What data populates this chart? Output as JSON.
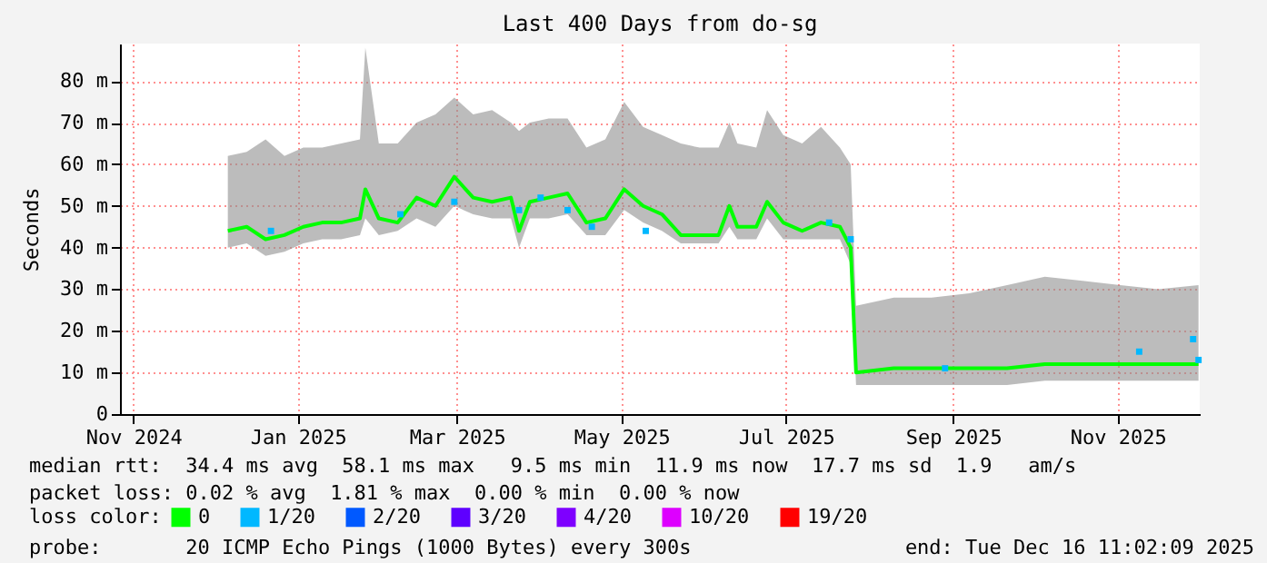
{
  "chart_data": {
    "type": "line",
    "title": "Last 400 Days from do-sg",
    "ylabel": "Seconds",
    "xlim": [
      "2024-11-11",
      "2025-12-16T11:02"
    ],
    "xticks": [
      {
        "value": "2024-11-16",
        "label": "Nov 2024"
      },
      {
        "value": "2025-01-16",
        "label": "Jan 2025"
      },
      {
        "value": "2025-03-16",
        "label": "Mar 2025"
      },
      {
        "value": "2025-05-16",
        "label": "May 2025"
      },
      {
        "value": "2025-07-16",
        "label": "Jul 2025"
      },
      {
        "value": "2025-09-16",
        "label": "Sep 2025"
      },
      {
        "value": "2025-11-16",
        "label": "Nov 2025"
      }
    ],
    "ylim": [
      0,
      89
    ],
    "yticks": [
      0,
      {
        "value": 10,
        "label": "10 m"
      },
      {
        "value": 20,
        "label": "20 m"
      },
      {
        "value": 30,
        "label": "30 m"
      },
      {
        "value": 40,
        "label": "40 m"
      },
      {
        "value": 50,
        "label": "50 m"
      },
      {
        "value": 60,
        "label": "60 m"
      },
      {
        "value": 70,
        "label": "70 m"
      },
      {
        "value": 80,
        "label": "80 m"
      }
    ],
    "grid": true,
    "legend": "bottom",
    "legend_title": "loss color:",
    "series": [
      {
        "name": "0",
        "color": "#00ff00",
        "x": [
          "2024-12-21",
          "2024-12-28",
          "2025-01-04",
          "2025-01-11",
          "2025-01-18",
          "2025-01-25",
          "2025-02-01",
          "2025-02-08",
          "2025-02-10",
          "2025-02-15",
          "2025-02-22",
          "2025-03-01",
          "2025-03-08",
          "2025-03-15",
          "2025-03-22",
          "2025-03-29",
          "2025-04-05",
          "2025-04-08",
          "2025-04-12",
          "2025-04-19",
          "2025-04-26",
          "2025-05-03",
          "2025-05-10",
          "2025-05-17",
          "2025-05-24",
          "2025-05-31",
          "2025-06-07",
          "2025-06-14",
          "2025-06-21",
          "2025-06-25",
          "2025-06-28",
          "2025-07-05",
          "2025-07-09",
          "2025-07-15",
          "2025-07-22",
          "2025-07-29",
          "2025-08-05",
          "2025-08-09",
          "2025-08-11",
          "2025-08-25",
          "2025-09-08",
          "2025-09-22",
          "2025-10-06",
          "2025-10-20",
          "2025-11-03",
          "2025-11-17",
          "2025-12-01",
          "2025-12-16"
        ],
        "values": [
          44,
          45,
          42,
          43,
          45,
          46,
          46,
          47,
          54,
          47,
          46,
          52,
          50,
          57,
          52,
          51,
          52,
          44,
          51,
          52,
          53,
          46,
          47,
          54,
          50,
          48,
          43,
          43,
          43,
          50,
          45,
          45,
          51,
          46,
          44,
          46,
          45,
          40,
          10,
          11,
          11,
          11,
          11,
          12,
          12,
          12,
          12,
          12
        ],
        "lower": [
          40,
          41,
          38,
          39,
          41,
          42,
          42,
          43,
          47,
          43,
          44,
          47,
          45,
          50,
          48,
          47,
          47,
          40,
          47,
          47,
          48,
          43,
          43,
          49,
          46,
          44,
          41,
          41,
          41,
          45,
          42,
          42,
          47,
          42,
          42,
          42,
          42,
          36,
          7,
          7,
          7,
          7,
          7,
          8,
          8,
          8,
          8,
          8
        ],
        "upper": [
          62,
          63,
          66,
          62,
          64,
          64,
          65,
          66,
          88,
          65,
          65,
          70,
          72,
          76,
          72,
          73,
          70,
          68,
          70,
          71,
          71,
          64,
          66,
          75,
          69,
          67,
          65,
          64,
          64,
          70,
          65,
          64,
          73,
          67,
          65,
          69,
          64,
          60,
          26,
          28,
          28,
          29,
          31,
          33,
          32,
          31,
          30,
          31
        ]
      },
      {
        "name": "1/20",
        "color": "#00b8ff",
        "type": "scatter",
        "x": [
          "2025-01-06",
          "2025-02-23",
          "2025-03-15",
          "2025-04-08",
          "2025-04-16",
          "2025-04-26",
          "2025-05-05",
          "2025-05-25",
          "2025-08-01",
          "2025-08-09",
          "2025-09-13",
          "2025-11-24",
          "2025-12-14",
          "2025-12-16"
        ],
        "values": [
          44,
          48,
          51,
          49,
          52,
          49,
          45,
          44,
          46,
          42,
          11,
          15,
          18,
          13
        ]
      },
      {
        "name": "2/20",
        "color": "#0059ff",
        "type": "scatter"
      },
      {
        "name": "3/20",
        "color": "#5e00ff",
        "type": "scatter"
      },
      {
        "name": "4/20",
        "color": "#7e00ff",
        "type": "scatter"
      },
      {
        "name": "10/20",
        "color": "#dd00ff",
        "type": "scatter"
      },
      {
        "name": "19/20",
        "color": "#ff0000",
        "type": "scatter"
      }
    ],
    "annotations": [
      "median rtt:  34.4 ms avg  58.1 ms max   9.5 ms min  11.9 ms now  17.7 ms sd  1.9   am/s",
      "packet loss: 0.02 % avg  1.81 % max  0.00 % min  0.00 % now",
      "probe:       20 ICMP Echo Pings (1000 Bytes) every 300s",
      "end: Tue Dec 16 11:02:09 2025"
    ]
  }
}
